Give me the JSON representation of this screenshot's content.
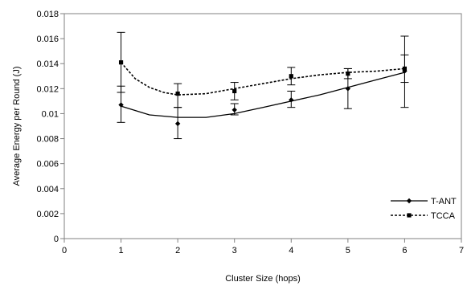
{
  "chart_data": {
    "type": "line",
    "xlabel": "Cluster Size (hops)",
    "ylabel": "Average Energy per Round (J)",
    "xlim": [
      0,
      7
    ],
    "ylim": [
      0,
      0.018
    ],
    "x_ticks": [
      "0",
      "1",
      "2",
      "3",
      "4",
      "5",
      "6",
      "7"
    ],
    "y_ticks": [
      "0",
      "0.002",
      "0.004",
      "0.006",
      "0.008",
      "0.01",
      "0.012",
      "0.014",
      "0.016",
      "0.018"
    ],
    "grid": false,
    "legend_position": "right",
    "series": [
      {
        "name": "T-ANT",
        "marker": "diamond",
        "line_style": "solid",
        "color": "#000000",
        "x": [
          1,
          2,
          3,
          4,
          5,
          6
        ],
        "y": [
          0.0107,
          0.0092,
          0.0103,
          0.0111,
          0.012,
          0.0134
        ],
        "err_low": [
          0.0093,
          0.008,
          0.0099,
          0.0105,
          0.0104,
          0.0105
        ],
        "err_high": [
          0.0122,
          0.0105,
          0.0108,
          0.0118,
          0.0136,
          0.0162
        ],
        "trend": [
          [
            1,
            0.0106
          ],
          [
            1.5,
            0.0099
          ],
          [
            2,
            0.0097
          ],
          [
            2.5,
            0.0097
          ],
          [
            3,
            0.01
          ],
          [
            3.5,
            0.0105
          ],
          [
            4,
            0.011
          ],
          [
            4.5,
            0.0115
          ],
          [
            5,
            0.0121
          ],
          [
            5.5,
            0.0127
          ],
          [
            6,
            0.0133
          ]
        ]
      },
      {
        "name": "TCCA",
        "marker": "square",
        "line_style": "dashed",
        "color": "#000000",
        "x": [
          1,
          2,
          3,
          4,
          5,
          6
        ],
        "y": [
          0.0141,
          0.0116,
          0.0118,
          0.013,
          0.0132,
          0.0136
        ],
        "err_low": [
          0.0117,
          0.0105,
          0.0111,
          0.0123,
          0.0128,
          0.0125
        ],
        "err_high": [
          0.0165,
          0.0124,
          0.0125,
          0.0137,
          0.0136,
          0.0147
        ],
        "trend": [
          [
            1,
            0.0141
          ],
          [
            1.25,
            0.0128
          ],
          [
            1.5,
            0.0121
          ],
          [
            1.75,
            0.0117
          ],
          [
            2,
            0.0115
          ],
          [
            2.5,
            0.0116
          ],
          [
            3,
            0.012
          ],
          [
            3.5,
            0.0124
          ],
          [
            4,
            0.0128
          ],
          [
            4.5,
            0.0131
          ],
          [
            5,
            0.0133
          ],
          [
            5.5,
            0.0134
          ],
          [
            6,
            0.0136
          ]
        ]
      }
    ]
  }
}
